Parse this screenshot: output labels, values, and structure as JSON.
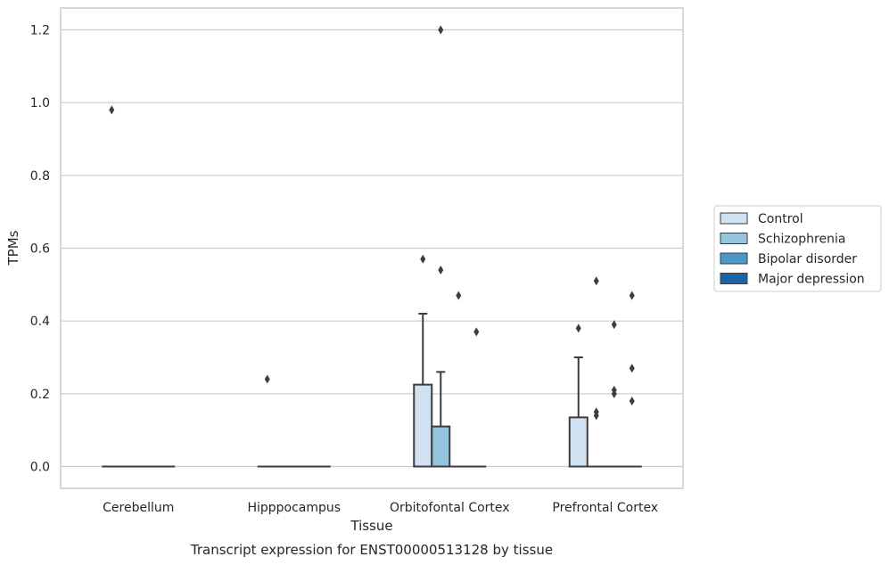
{
  "chart_data": {
    "type": "box",
    "title": "",
    "caption": "Transcript expression for ENST00000513128 by tissue",
    "xlabel": "Tissue",
    "ylabel": "TPMs",
    "categories": [
      "Cerebellum",
      "Hipppocampus",
      "Orbitofontal Cortex",
      "Prefrontal Cortex"
    ],
    "ylim": [
      -0.06,
      1.26
    ],
    "yticks": [
      "0.0",
      "0.2",
      "0.4",
      "0.6",
      "0.8",
      "1.0",
      "1.2"
    ],
    "grid": "horizontal",
    "legend_position": "right",
    "series": [
      {
        "name": "Control",
        "color": "#d0e1f2",
        "boxes": [
          {
            "q1": 0,
            "median": 0,
            "q3": 0,
            "whisker_low": 0,
            "whisker_high": 0,
            "outliers": [
              0.98
            ]
          },
          {
            "q1": 0,
            "median": 0,
            "q3": 0,
            "whisker_low": 0,
            "whisker_high": 0,
            "outliers": [
              0.24
            ]
          },
          {
            "q1": 0,
            "median": 0,
            "q3": 0.225,
            "whisker_low": 0,
            "whisker_high": 0.42,
            "outliers": [
              0.57
            ]
          },
          {
            "q1": 0,
            "median": 0,
            "q3": 0.135,
            "whisker_low": 0,
            "whisker_high": 0.3,
            "outliers": [
              0.38
            ]
          }
        ]
      },
      {
        "name": "Schizophrenia",
        "color": "#94c4df",
        "boxes": [
          {
            "q1": 0,
            "median": 0,
            "q3": 0,
            "whisker_low": 0,
            "whisker_high": 0,
            "outliers": []
          },
          {
            "q1": 0,
            "median": 0,
            "q3": 0,
            "whisker_low": 0,
            "whisker_high": 0,
            "outliers": []
          },
          {
            "q1": 0,
            "median": 0,
            "q3": 0.11,
            "whisker_low": 0,
            "whisker_high": 0.26,
            "outliers": [
              1.2,
              0.54
            ]
          },
          {
            "q1": 0,
            "median": 0,
            "q3": 0,
            "whisker_low": 0,
            "whisker_high": 0,
            "outliers": [
              0.51,
              0.15,
              0.14
            ]
          }
        ]
      },
      {
        "name": "Bipolar disorder",
        "color": "#4a98c9",
        "boxes": [
          {
            "q1": 0,
            "median": 0,
            "q3": 0,
            "whisker_low": 0,
            "whisker_high": 0,
            "outliers": []
          },
          {
            "q1": 0,
            "median": 0,
            "q3": 0,
            "whisker_low": 0,
            "whisker_high": 0,
            "outliers": []
          },
          {
            "q1": 0,
            "median": 0,
            "q3": 0,
            "whisker_low": 0,
            "whisker_high": 0,
            "outliers": [
              0.47
            ]
          },
          {
            "q1": 0,
            "median": 0,
            "q3": 0,
            "whisker_low": 0,
            "whisker_high": 0,
            "outliers": [
              0.39,
              0.21,
              0.2
            ]
          }
        ]
      },
      {
        "name": "Major depression",
        "color": "#1764ab",
        "boxes": [
          {
            "q1": 0,
            "median": 0,
            "q3": 0,
            "whisker_low": 0,
            "whisker_high": 0,
            "outliers": []
          },
          {
            "q1": 0,
            "median": 0,
            "q3": 0,
            "whisker_low": 0,
            "whisker_high": 0,
            "outliers": []
          },
          {
            "q1": 0,
            "median": 0,
            "q3": 0,
            "whisker_low": 0,
            "whisker_high": 0,
            "outliers": [
              0.37
            ]
          },
          {
            "q1": 0,
            "median": 0,
            "q3": 0,
            "whisker_low": 0,
            "whisker_high": 0,
            "outliers": [
              0.47,
              0.27,
              0.18
            ]
          }
        ]
      }
    ]
  }
}
